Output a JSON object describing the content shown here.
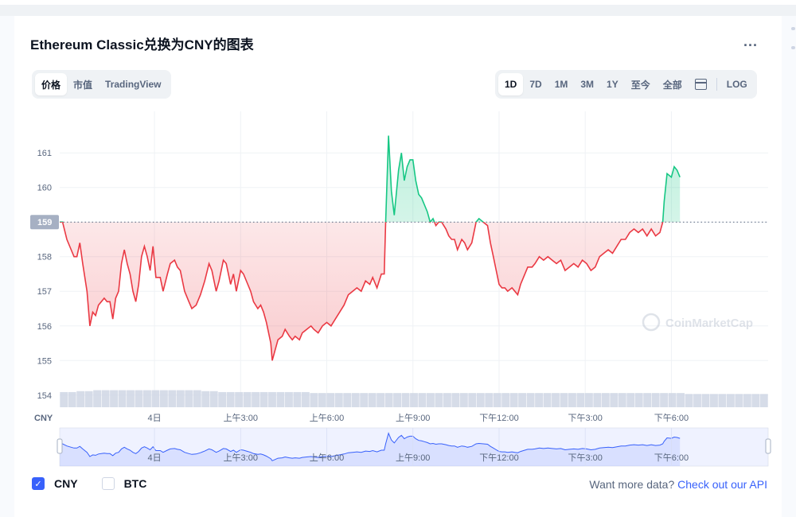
{
  "title": "Ethereum Classic兑换为CNY的图表",
  "more_menu": "...",
  "tabs": [
    {
      "label": "价格",
      "active": true
    },
    {
      "label": "市值",
      "active": false
    },
    {
      "label": "TradingView",
      "active": false
    }
  ],
  "ranges": [
    {
      "label": "1D",
      "active": true
    },
    {
      "label": "7D",
      "active": false
    },
    {
      "label": "1M",
      "active": false
    },
    {
      "label": "3M",
      "active": false
    },
    {
      "label": "1Y",
      "active": false
    },
    {
      "label": "至今",
      "active": false
    },
    {
      "label": "全部",
      "active": false
    }
  ],
  "calendar_icon": "calendar-icon",
  "log_label": "LOG",
  "legend": [
    {
      "label": "CNY",
      "checked": true
    },
    {
      "label": "BTC",
      "checked": false
    }
  ],
  "more_data": {
    "text": "Want more data?",
    "link": "Check out our API"
  },
  "watermark": "CoinMarketCap",
  "colors": {
    "up": "#16c784",
    "down": "#ea3943",
    "navigator": "#3861fb",
    "volume": "#cfd6e4"
  },
  "chart_data": {
    "type": "line",
    "currency_label": "CNY",
    "y_ticks": [
      154,
      155,
      156,
      157,
      158,
      159,
      160,
      161
    ],
    "ylim": [
      153.65,
      162.2
    ],
    "baseline": 159,
    "baseline_label": "159",
    "x_range": [
      0,
      24.67
    ],
    "x_ticks": [
      {
        "t": 3.3,
        "label": "4日"
      },
      {
        "t": 6.3,
        "label": "上午3:00"
      },
      {
        "t": 9.3,
        "label": "上午6:00"
      },
      {
        "t": 12.3,
        "label": "上午9:00"
      },
      {
        "t": 15.3,
        "label": "下午12:00"
      },
      {
        "t": 18.3,
        "label": "下午3:00"
      },
      {
        "t": 21.3,
        "label": "下午6:00"
      }
    ],
    "grid": true,
    "series": [
      {
        "points": [
          [
            0,
            159.0
          ],
          [
            0.1,
            159.0
          ],
          [
            0.25,
            158.5
          ],
          [
            0.4,
            158.2
          ],
          [
            0.5,
            158.0
          ],
          [
            0.6,
            158.0
          ],
          [
            0.7,
            158.4
          ],
          [
            0.8,
            157.8
          ],
          [
            0.95,
            157.0
          ],
          [
            1.05,
            156.0
          ],
          [
            1.15,
            156.4
          ],
          [
            1.25,
            156.3
          ],
          [
            1.35,
            156.6
          ],
          [
            1.45,
            156.7
          ],
          [
            1.55,
            156.8
          ],
          [
            1.65,
            156.7
          ],
          [
            1.75,
            156.7
          ],
          [
            1.85,
            156.2
          ],
          [
            1.95,
            156.8
          ],
          [
            2.05,
            157.0
          ],
          [
            2.15,
            157.8
          ],
          [
            2.25,
            158.2
          ],
          [
            2.35,
            157.8
          ],
          [
            2.45,
            157.5
          ],
          [
            2.55,
            157.0
          ],
          [
            2.65,
            156.7
          ],
          [
            2.75,
            157.2
          ],
          [
            2.85,
            158.0
          ],
          [
            2.95,
            158.3
          ],
          [
            3.05,
            158.0
          ],
          [
            3.15,
            157.6
          ],
          [
            3.25,
            158.3
          ],
          [
            3.35,
            157.4
          ],
          [
            3.5,
            157.4
          ],
          [
            3.6,
            157.0
          ],
          [
            3.75,
            157.5
          ],
          [
            3.85,
            157.8
          ],
          [
            4.0,
            157.9
          ],
          [
            4.1,
            157.7
          ],
          [
            4.2,
            157.6
          ],
          [
            4.35,
            157.0
          ],
          [
            4.5,
            156.7
          ],
          [
            4.6,
            156.5
          ],
          [
            4.75,
            156.6
          ],
          [
            4.9,
            156.9
          ],
          [
            5.05,
            157.3
          ],
          [
            5.2,
            157.8
          ],
          [
            5.3,
            157.6
          ],
          [
            5.45,
            157.0
          ],
          [
            5.55,
            157.3
          ],
          [
            5.7,
            157.9
          ],
          [
            5.8,
            157.8
          ],
          [
            5.95,
            157.2
          ],
          [
            6.05,
            157.5
          ],
          [
            6.15,
            157.0
          ],
          [
            6.3,
            157.6
          ],
          [
            6.4,
            157.5
          ],
          [
            6.55,
            157.2
          ],
          [
            6.65,
            157.0
          ],
          [
            6.75,
            156.7
          ],
          [
            6.9,
            156.5
          ],
          [
            7.0,
            156.6
          ],
          [
            7.1,
            156.4
          ],
          [
            7.2,
            156.1
          ],
          [
            7.35,
            155.5
          ],
          [
            7.4,
            155.0
          ],
          [
            7.5,
            155.3
          ],
          [
            7.6,
            155.6
          ],
          [
            7.75,
            155.7
          ],
          [
            7.85,
            155.9
          ],
          [
            8.0,
            155.7
          ],
          [
            8.1,
            155.6
          ],
          [
            8.2,
            155.7
          ],
          [
            8.35,
            155.6
          ],
          [
            8.45,
            155.8
          ],
          [
            8.6,
            155.9
          ],
          [
            8.75,
            156.0
          ],
          [
            8.85,
            155.9
          ],
          [
            9.0,
            155.8
          ],
          [
            9.15,
            156.0
          ],
          [
            9.3,
            156.1
          ],
          [
            9.45,
            156.0
          ],
          [
            9.6,
            156.2
          ],
          [
            9.75,
            156.4
          ],
          [
            9.9,
            156.6
          ],
          [
            10.05,
            156.9
          ],
          [
            10.2,
            157.0
          ],
          [
            10.35,
            157.1
          ],
          [
            10.5,
            157.0
          ],
          [
            10.65,
            157.3
          ],
          [
            10.8,
            157.2
          ],
          [
            10.9,
            157.4
          ],
          [
            11.05,
            157.1
          ],
          [
            11.2,
            157.5
          ],
          [
            11.3,
            157.5
          ],
          [
            11.35,
            159.0
          ],
          [
            11.45,
            161.5
          ],
          [
            11.55,
            159.9
          ],
          [
            11.65,
            159.2
          ],
          [
            11.8,
            160.5
          ],
          [
            11.9,
            161.0
          ],
          [
            12.0,
            160.2
          ],
          [
            12.1,
            160.6
          ],
          [
            12.2,
            160.8
          ],
          [
            12.3,
            160.8
          ],
          [
            12.4,
            160.2
          ],
          [
            12.5,
            159.8
          ],
          [
            12.6,
            159.7
          ],
          [
            12.7,
            159.5
          ],
          [
            12.8,
            159.3
          ],
          [
            12.9,
            159.0
          ],
          [
            13.0,
            159.1
          ],
          [
            13.1,
            158.9
          ],
          [
            13.2,
            159.0
          ],
          [
            13.3,
            159.0
          ],
          [
            13.45,
            158.8
          ],
          [
            13.55,
            158.6
          ],
          [
            13.65,
            158.5
          ],
          [
            13.75,
            158.5
          ],
          [
            13.85,
            158.2
          ],
          [
            14.0,
            158.5
          ],
          [
            14.1,
            158.4
          ],
          [
            14.2,
            158.2
          ],
          [
            14.35,
            158.4
          ],
          [
            14.5,
            159.0
          ],
          [
            14.6,
            159.1
          ],
          [
            14.75,
            159.0
          ],
          [
            14.9,
            158.9
          ],
          [
            15.0,
            158.4
          ],
          [
            15.1,
            158.0
          ],
          [
            15.2,
            157.6
          ],
          [
            15.3,
            157.2
          ],
          [
            15.4,
            157.1
          ],
          [
            15.5,
            157.1
          ],
          [
            15.6,
            157.0
          ],
          [
            15.75,
            157.1
          ],
          [
            15.85,
            157.0
          ],
          [
            15.95,
            156.9
          ],
          [
            16.05,
            157.2
          ],
          [
            16.15,
            157.4
          ],
          [
            16.3,
            157.7
          ],
          [
            16.45,
            157.7
          ],
          [
            16.55,
            157.8
          ],
          [
            16.7,
            158.0
          ],
          [
            16.85,
            157.9
          ],
          [
            17.0,
            158.0
          ],
          [
            17.15,
            157.9
          ],
          [
            17.3,
            157.8
          ],
          [
            17.45,
            157.9
          ],
          [
            17.6,
            157.6
          ],
          [
            17.75,
            157.7
          ],
          [
            17.9,
            157.8
          ],
          [
            18.05,
            157.7
          ],
          [
            18.2,
            157.9
          ],
          [
            18.35,
            157.8
          ],
          [
            18.5,
            157.6
          ],
          [
            18.65,
            157.7
          ],
          [
            18.8,
            158.0
          ],
          [
            18.95,
            158.1
          ],
          [
            19.1,
            158.2
          ],
          [
            19.25,
            158.1
          ],
          [
            19.4,
            158.3
          ],
          [
            19.55,
            158.5
          ],
          [
            19.7,
            158.5
          ],
          [
            19.85,
            158.7
          ],
          [
            20.0,
            158.8
          ],
          [
            20.15,
            158.7
          ],
          [
            20.3,
            158.8
          ],
          [
            20.45,
            158.6
          ],
          [
            20.6,
            158.8
          ],
          [
            20.75,
            158.6
          ],
          [
            20.9,
            158.7
          ],
          [
            21.0,
            159.0
          ],
          [
            21.05,
            159.6
          ],
          [
            21.15,
            160.4
          ],
          [
            21.3,
            160.3
          ],
          [
            21.4,
            160.6
          ],
          [
            21.5,
            160.5
          ],
          [
            21.6,
            160.3
          ]
        ]
      }
    ],
    "volume": [
      0.16,
      0.16,
      0.17,
      0.17,
      0.18,
      0.18,
      0.18,
      0.18,
      0.18,
      0.18,
      0.18,
      0.18,
      0.18,
      0.18,
      0.18,
      0.18,
      0.18,
      0.17,
      0.17,
      0.16,
      0.16,
      0.16,
      0.16,
      0.16,
      0.16,
      0.16,
      0.16,
      0.16,
      0.16,
      0.16,
      0.15,
      0.15,
      0.15,
      0.15,
      0.15,
      0.15,
      0.15,
      0.15,
      0.15,
      0.15,
      0.15,
      0.15,
      0.15,
      0.15,
      0.15,
      0.15,
      0.15,
      0.15,
      0.15,
      0.15,
      0.15,
      0.15,
      0.15,
      0.15,
      0.15,
      0.15,
      0.15,
      0.15,
      0.15,
      0.15,
      0.15,
      0.15,
      0.15,
      0.15,
      0.15,
      0.15,
      0.15,
      0.15,
      0.15,
      0.15,
      0.15,
      0.15,
      0.15,
      0.15,
      0.15,
      0.14,
      0.14,
      0.14,
      0.14,
      0.14,
      0.14,
      0.14,
      0.14,
      0.14,
      0.14
    ],
    "navigator": {
      "x_ticks": [
        "4日",
        "上午3:00",
        "上午6:00",
        "上午9:00",
        "下午12:00",
        "下午3:00",
        "下午6:00"
      ]
    }
  }
}
